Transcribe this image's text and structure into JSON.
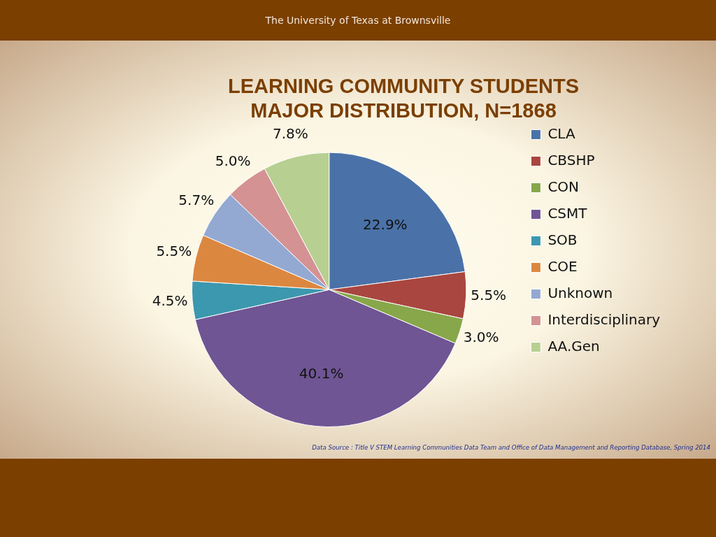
{
  "chart_data": {
    "type": "pie",
    "title": "LEARNING COMMUNITY STUDENTS\nMAJOR DISTRIBUTION, N=1868",
    "categories": [
      "CLA",
      "CBSHP",
      "CON",
      "CSMT",
      "SOB",
      "COE",
      "Unknown",
      "Interdisciplinary",
      "AA.Gen"
    ],
    "values": [
      22.9,
      5.5,
      3.0,
      40.1,
      4.5,
      5.5,
      5.7,
      5.0,
      7.8
    ],
    "colors": [
      "#4a72a8",
      "#a9463f",
      "#88a74a",
      "#6f5593",
      "#3c98ae",
      "#dc8740",
      "#93a9d2",
      "#d49293",
      "#b8cf92"
    ],
    "value_labels": [
      "22.9%",
      "5.5%",
      "3.0%",
      "40.1%",
      "4.5%",
      "5.5%",
      "5.7%",
      "5.0%",
      "7.8%"
    ],
    "legend": "right",
    "annotations": [
      "The University of Texas at Brownsville",
      "Data Source : Title V STEM Learning Communities Data Team and  Office of Data Management and Reporting Database, Spring 2014"
    ]
  }
}
